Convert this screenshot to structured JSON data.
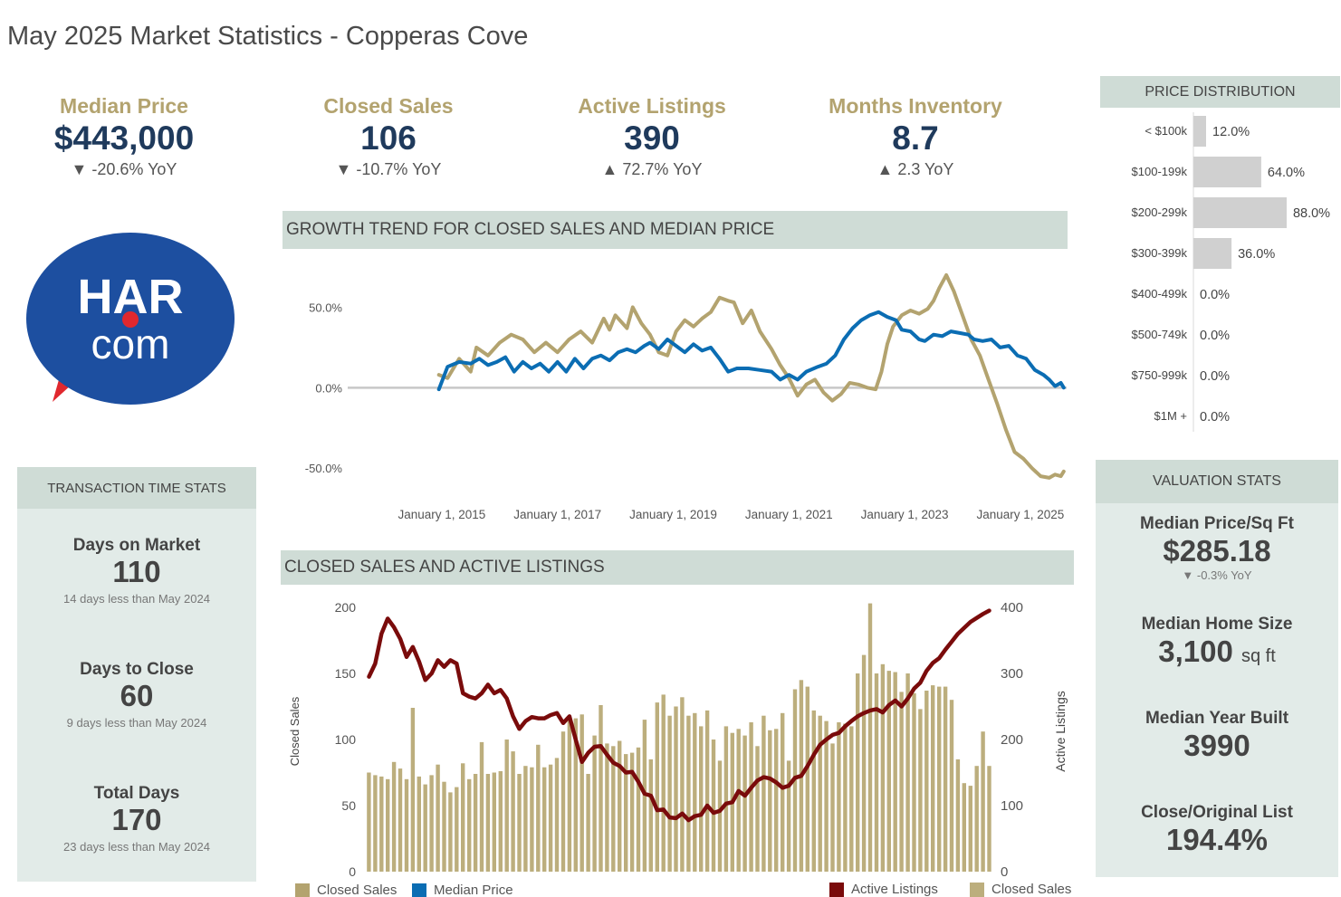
{
  "page": {
    "title": "May 2025 Market Statistics - Copperas Cove"
  },
  "kpis": [
    {
      "label": "Median Price",
      "value": "$443,000",
      "change": "▼ -20.6% YoY"
    },
    {
      "label": "Closed Sales",
      "value": "106",
      "change": "▼ -10.7% YoY"
    },
    {
      "label": "Active Listings",
      "value": "390",
      "change": "▲ 72.7% YoY"
    },
    {
      "label": "Months Inventory",
      "value": "8.7",
      "change": "▲ 2.3 YoY"
    }
  ],
  "logo": {
    "line1": "HAR",
    "line2": "com",
    "colors": {
      "circle": "#1d4fa0",
      "dot": "#e0282e",
      "text": "#ffffff"
    }
  },
  "transaction_time": {
    "title": "TRANSACTION TIME STATS",
    "stats": [
      {
        "label": "Days on Market",
        "value": "110",
        "note": "14 days less than May 2024"
      },
      {
        "label": "Days to Close",
        "value": "60",
        "note": "9 days less than May 2024"
      },
      {
        "label": "Total Days",
        "value": "170",
        "note": "23 days less than May 2024"
      }
    ]
  },
  "price_distribution": {
    "title": "PRICE DISTRIBUTION",
    "rows": [
      {
        "label": "< $100k",
        "pct": 12.0,
        "text": "12.0%"
      },
      {
        "label": "$100-199k",
        "pct": 64.0,
        "text": "64.0%"
      },
      {
        "label": "$200-299k",
        "pct": 88.0,
        "text": "88.0%"
      },
      {
        "label": "$300-399k",
        "pct": 36.0,
        "text": "36.0%"
      },
      {
        "label": "$400-499k",
        "pct": 0.0,
        "text": "0.0%"
      },
      {
        "label": "$500-749k",
        "pct": 0.0,
        "text": "0.0%"
      },
      {
        "label": "$750-999k",
        "pct": 0.0,
        "text": "0.0%"
      },
      {
        "label": "$1M +",
        "pct": 0.0,
        "text": "0.0%"
      }
    ]
  },
  "valuation": {
    "title": "VALUATION STATS",
    "stats": [
      {
        "label": "Median Price/Sq Ft",
        "value": "$285.18",
        "note": "▼ -0.3% YoY"
      },
      {
        "label": "Median Home Size",
        "value": "3,100",
        "unit": "sq ft"
      },
      {
        "label": "Median Year Built",
        "value": "3990"
      },
      {
        "label": "Close/Original List",
        "value": "194.4%"
      }
    ]
  },
  "colors": {
    "gold": "#b3a36f",
    "navy": "#1f3a5c",
    "blue": "#0b6db3",
    "maroon": "#7a0b0b",
    "bar": "#bcae7d",
    "header": "#cfdcd6",
    "panel": "#e2ebe8"
  },
  "chart_data": [
    {
      "type": "line",
      "title": "GROWTH TREND FOR CLOSED SALES AND MEDIAN PRICE",
      "ylim": [
        -0.6,
        0.75
      ],
      "y_ticks": [
        0.5,
        0.0,
        -0.5
      ],
      "y_tick_labels": [
        "50.0%",
        "0.0%",
        "-50.0%"
      ],
      "x_tick_labels": [
        "January 1, 2015",
        "January 1, 2017",
        "January 1, 2019",
        "January 1, 2021",
        "January 1, 2023",
        "January 1, 2025"
      ],
      "x_tick_years": [
        2015,
        2017,
        2019,
        2021,
        2023,
        2025
      ],
      "xlim": [
        2014.0,
        2025.8
      ],
      "legend": {
        "placement": "bottom-left"
      },
      "series": [
        {
          "name": "Closed Sales",
          "color": "#b3a36f",
          "points": [
            [
              2014.95,
              0.08
            ],
            [
              2015.1,
              0.06
            ],
            [
              2015.3,
              0.18
            ],
            [
              2015.5,
              0.1
            ],
            [
              2015.6,
              0.25
            ],
            [
              2015.8,
              0.2
            ],
            [
              2016.0,
              0.28
            ],
            [
              2016.2,
              0.33
            ],
            [
              2016.4,
              0.3
            ],
            [
              2016.6,
              0.22
            ],
            [
              2016.8,
              0.28
            ],
            [
              2017.0,
              0.22
            ],
            [
              2017.2,
              0.3
            ],
            [
              2017.4,
              0.35
            ],
            [
              2017.6,
              0.28
            ],
            [
              2017.8,
              0.43
            ],
            [
              2017.9,
              0.36
            ],
            [
              2018.0,
              0.45
            ],
            [
              2018.2,
              0.37
            ],
            [
              2018.3,
              0.5
            ],
            [
              2018.45,
              0.4
            ],
            [
              2018.6,
              0.33
            ],
            [
              2018.75,
              0.22
            ],
            [
              2018.9,
              0.2
            ],
            [
              2019.05,
              0.35
            ],
            [
              2019.2,
              0.42
            ],
            [
              2019.35,
              0.38
            ],
            [
              2019.5,
              0.43
            ],
            [
              2019.65,
              0.47
            ],
            [
              2019.8,
              0.56
            ],
            [
              2019.95,
              0.54
            ],
            [
              2020.05,
              0.53
            ],
            [
              2020.2,
              0.4
            ],
            [
              2020.35,
              0.48
            ],
            [
              2020.5,
              0.35
            ],
            [
              2020.7,
              0.24
            ],
            [
              2020.85,
              0.14
            ],
            [
              2021.0,
              0.06
            ],
            [
              2021.15,
              -0.05
            ],
            [
              2021.3,
              0.02
            ],
            [
              2021.45,
              0.05
            ],
            [
              2021.6,
              -0.03
            ],
            [
              2021.75,
              -0.08
            ],
            [
              2021.9,
              -0.04
            ],
            [
              2022.05,
              0.03
            ],
            [
              2022.2,
              0.02
            ],
            [
              2022.35,
              0.0
            ],
            [
              2022.5,
              -0.01
            ],
            [
              2022.6,
              0.1
            ],
            [
              2022.7,
              0.27
            ],
            [
              2022.8,
              0.38
            ],
            [
              2022.95,
              0.45
            ],
            [
              2023.1,
              0.48
            ],
            [
              2023.25,
              0.46
            ],
            [
              2023.4,
              0.49
            ],
            [
              2023.5,
              0.54
            ],
            [
              2023.6,
              0.62
            ],
            [
              2023.72,
              0.7
            ],
            [
              2023.85,
              0.6
            ],
            [
              2024.0,
              0.45
            ],
            [
              2024.15,
              0.3
            ],
            [
              2024.3,
              0.2
            ],
            [
              2024.45,
              0.05
            ],
            [
              2024.6,
              -0.1
            ],
            [
              2024.75,
              -0.26
            ],
            [
              2024.9,
              -0.4
            ],
            [
              2025.05,
              -0.44
            ],
            [
              2025.2,
              -0.5
            ],
            [
              2025.35,
              -0.55
            ],
            [
              2025.5,
              -0.56
            ],
            [
              2025.6,
              -0.54
            ],
            [
              2025.7,
              -0.55
            ],
            [
              2025.75,
              -0.52
            ]
          ]
        },
        {
          "name": "Median Price",
          "color": "#0b6db3",
          "points": [
            [
              2014.95,
              -0.01
            ],
            [
              2015.1,
              0.13
            ],
            [
              2015.3,
              0.16
            ],
            [
              2015.5,
              0.15
            ],
            [
              2015.65,
              0.18
            ],
            [
              2015.8,
              0.14
            ],
            [
              2015.95,
              0.16
            ],
            [
              2016.1,
              0.19
            ],
            [
              2016.25,
              0.1
            ],
            [
              2016.4,
              0.16
            ],
            [
              2016.55,
              0.12
            ],
            [
              2016.7,
              0.15
            ],
            [
              2016.85,
              0.1
            ],
            [
              2017.0,
              0.16
            ],
            [
              2017.15,
              0.1
            ],
            [
              2017.3,
              0.18
            ],
            [
              2017.45,
              0.12
            ],
            [
              2017.6,
              0.18
            ],
            [
              2017.75,
              0.2
            ],
            [
              2017.9,
              0.17
            ],
            [
              2018.05,
              0.22
            ],
            [
              2018.2,
              0.24
            ],
            [
              2018.35,
              0.22
            ],
            [
              2018.5,
              0.26
            ],
            [
              2018.6,
              0.28
            ],
            [
              2018.75,
              0.24
            ],
            [
              2018.9,
              0.3
            ],
            [
              2019.05,
              0.26
            ],
            [
              2019.2,
              0.22
            ],
            [
              2019.35,
              0.27
            ],
            [
              2019.5,
              0.23
            ],
            [
              2019.65,
              0.25
            ],
            [
              2019.8,
              0.18
            ],
            [
              2019.95,
              0.1
            ],
            [
              2020.1,
              0.12
            ],
            [
              2020.3,
              0.12
            ],
            [
              2020.5,
              0.11
            ],
            [
              2020.7,
              0.1
            ],
            [
              2020.85,
              0.05
            ],
            [
              2021.0,
              0.08
            ],
            [
              2021.15,
              0.05
            ],
            [
              2021.3,
              0.1
            ],
            [
              2021.5,
              0.13
            ],
            [
              2021.65,
              0.15
            ],
            [
              2021.8,
              0.2
            ],
            [
              2021.95,
              0.3
            ],
            [
              2022.1,
              0.37
            ],
            [
              2022.25,
              0.42
            ],
            [
              2022.4,
              0.45
            ],
            [
              2022.55,
              0.47
            ],
            [
              2022.7,
              0.44
            ],
            [
              2022.85,
              0.42
            ],
            [
              2022.95,
              0.36
            ],
            [
              2023.1,
              0.35
            ],
            [
              2023.25,
              0.3
            ],
            [
              2023.35,
              0.29
            ],
            [
              2023.5,
              0.33
            ],
            [
              2023.65,
              0.32
            ],
            [
              2023.8,
              0.35
            ],
            [
              2023.95,
              0.34
            ],
            [
              2024.1,
              0.33
            ],
            [
              2024.2,
              0.3
            ],
            [
              2024.35,
              0.29
            ],
            [
              2024.5,
              0.3
            ],
            [
              2024.65,
              0.25
            ],
            [
              2024.8,
              0.26
            ],
            [
              2024.95,
              0.2
            ],
            [
              2025.1,
              0.18
            ],
            [
              2025.25,
              0.11
            ],
            [
              2025.4,
              0.08
            ],
            [
              2025.5,
              0.05
            ],
            [
              2025.6,
              0.01
            ],
            [
              2025.7,
              0.03
            ],
            [
              2025.75,
              0.0
            ]
          ]
        }
      ]
    },
    {
      "type": "bar",
      "title": "CLOSED SALES AND ACTIVE LISTINGS",
      "xlabel": "",
      "ylabel": "Closed Sales",
      "ylabel_right": "Active Listings",
      "ylim": [
        0,
        200
      ],
      "ylim_right": [
        0,
        400
      ],
      "y_ticks": [
        0,
        50,
        100,
        150,
        200
      ],
      "y_ticks_right": [
        0,
        100,
        200,
        300,
        400
      ],
      "legend": {
        "placement": "bottom-right"
      },
      "series": [
        {
          "name": "Closed Sales",
          "type": "bar",
          "color": "#bcae7d",
          "values": [
            75,
            73,
            72,
            70,
            83,
            78,
            70,
            124,
            72,
            66,
            73,
            81,
            68,
            60,
            64,
            82,
            70,
            74,
            98,
            74,
            75,
            76,
            100,
            91,
            74,
            80,
            79,
            96,
            79,
            81,
            86,
            106,
            115,
            116,
            119,
            74,
            103,
            126,
            97,
            95,
            99,
            89,
            90,
            94,
            115,
            85,
            128,
            134,
            118,
            125,
            132,
            118,
            120,
            110,
            122,
            100,
            84,
            110,
            105,
            108,
            103,
            113,
            95,
            118,
            107,
            108,
            120,
            84,
            138,
            145,
            140,
            122,
            118,
            114,
            97,
            113,
            112,
            110,
            150,
            164,
            203,
            150,
            157,
            152,
            151,
            136,
            150,
            135,
            123,
            137,
            141,
            140,
            140,
            130,
            85,
            67,
            65,
            80,
            106,
            80
          ]
        },
        {
          "name": "Active Listings",
          "type": "line",
          "color": "#7a0b0b",
          "axis": "right",
          "values": [
            295,
            315,
            360,
            383,
            370,
            352,
            325,
            340,
            318,
            290,
            300,
            320,
            310,
            320,
            315,
            270,
            265,
            262,
            270,
            283,
            270,
            275,
            262,
            235,
            216,
            228,
            234,
            232,
            232,
            237,
            240,
            225,
            235,
            200,
            166,
            180,
            189,
            190,
            177,
            165,
            160,
            150,
            151,
            136,
            118,
            115,
            93,
            94,
            82,
            81,
            88,
            78,
            84,
            86,
            100,
            89,
            92,
            103,
            105,
            122,
            115,
            127,
            138,
            143,
            141,
            135,
            127,
            130,
            142,
            145,
            160,
            177,
            192,
            200,
            207,
            210,
            220,
            228,
            235,
            240,
            244,
            246,
            241,
            252,
            259,
            250,
            262,
            277,
            286,
            304,
            316,
            323,
            336,
            348,
            360,
            369,
            378,
            384,
            390,
            395
          ]
        }
      ]
    }
  ],
  "legend_line": {
    "items": [
      {
        "label": "Closed Sales",
        "color": "#b3a36f"
      },
      {
        "label": "Median Price",
        "color": "#0b6db3"
      }
    ]
  },
  "legend_bar": {
    "items": [
      {
        "label": "Active Listings",
        "color": "#7a0b0b"
      },
      {
        "label": "Closed Sales",
        "color": "#bcae7d"
      }
    ]
  }
}
